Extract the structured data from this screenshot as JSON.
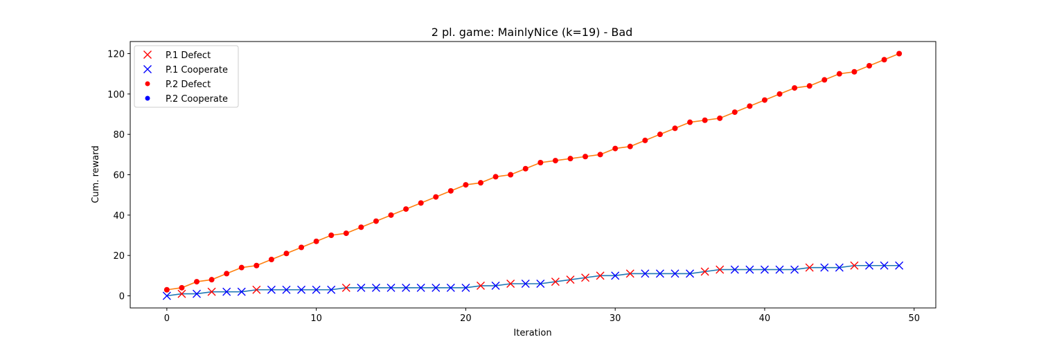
{
  "chart_data": {
    "type": "line",
    "title": "2 pl. game: MainlyNice (k=19) - Bad",
    "xlabel": "Iteration",
    "ylabel": "Cum. reward",
    "xlim": [
      -2.45,
      51.45
    ],
    "ylim": [
      -6,
      126
    ],
    "xticks": [
      0,
      10,
      20,
      30,
      40,
      50
    ],
    "yticks": [
      0,
      20,
      40,
      60,
      80,
      100,
      120
    ],
    "grid": false,
    "legend_position": "top-left",
    "legend": [
      {
        "label": "P.1 Defect",
        "marker": "x",
        "color": "#ff0000"
      },
      {
        "label": "P.1 Cooperate",
        "marker": "x",
        "color": "#0000ff"
      },
      {
        "label": "P.2 Defect",
        "marker": "dot",
        "color": "#ff0000"
      },
      {
        "label": "P.2 Cooperate",
        "marker": "dot",
        "color": "#0000ff"
      }
    ],
    "colors": {
      "p1_line": "#1f77b4",
      "p2_line": "#ff7f0e",
      "defect": "#ff0000",
      "cooperate": "#0000ff"
    },
    "series": [
      {
        "player": "P.1",
        "line_color": "#1f77b4",
        "marker": "x",
        "x": [
          0,
          1,
          2,
          3,
          4,
          5,
          6,
          7,
          8,
          9,
          10,
          11,
          12,
          13,
          14,
          15,
          16,
          17,
          18,
          19,
          20,
          21,
          22,
          23,
          24,
          25,
          26,
          27,
          28,
          29,
          30,
          31,
          32,
          33,
          34,
          35,
          36,
          37,
          38,
          39,
          40,
          41,
          42,
          43,
          44,
          45,
          46,
          47,
          48,
          49
        ],
        "y": [
          0,
          1,
          1,
          2,
          2,
          2,
          3,
          3,
          3,
          3,
          3,
          3,
          4,
          4,
          4,
          4,
          4,
          4,
          4,
          4,
          4,
          5,
          5,
          6,
          6,
          6,
          7,
          8,
          9,
          10,
          10,
          11,
          11,
          11,
          11,
          11,
          12,
          13,
          13,
          13,
          13,
          13,
          13,
          14,
          14,
          14,
          15,
          15,
          15,
          15
        ],
        "actions": [
          "C",
          "D",
          "C",
          "D",
          "C",
          "C",
          "D",
          "C",
          "C",
          "C",
          "C",
          "C",
          "D",
          "C",
          "C",
          "C",
          "C",
          "C",
          "C",
          "C",
          "C",
          "D",
          "C",
          "D",
          "C",
          "C",
          "D",
          "D",
          "D",
          "D",
          "C",
          "D",
          "C",
          "C",
          "C",
          "C",
          "D",
          "D",
          "C",
          "C",
          "C",
          "C",
          "C",
          "D",
          "C",
          "C",
          "D",
          "C",
          "C",
          "C"
        ]
      },
      {
        "player": "P.2",
        "line_color": "#ff7f0e",
        "marker": "dot",
        "x": [
          0,
          1,
          2,
          3,
          4,
          5,
          6,
          7,
          8,
          9,
          10,
          11,
          12,
          13,
          14,
          15,
          16,
          17,
          18,
          19,
          20,
          21,
          22,
          23,
          24,
          25,
          26,
          27,
          28,
          29,
          30,
          31,
          32,
          33,
          34,
          35,
          36,
          37,
          38,
          39,
          40,
          41,
          42,
          43,
          44,
          45,
          46,
          47,
          48,
          49
        ],
        "y": [
          3,
          4,
          7,
          8,
          11,
          14,
          15,
          18,
          21,
          24,
          27,
          30,
          31,
          34,
          37,
          40,
          43,
          46,
          49,
          52,
          55,
          56,
          59,
          60,
          63,
          66,
          67,
          68,
          69,
          70,
          73,
          74,
          77,
          80,
          83,
          86,
          87,
          88,
          91,
          94,
          97,
          100,
          103,
          104,
          107,
          110,
          111,
          114,
          117,
          120
        ],
        "actions": [
          "D",
          "D",
          "D",
          "D",
          "D",
          "D",
          "D",
          "D",
          "D",
          "D",
          "D",
          "D",
          "D",
          "D",
          "D",
          "D",
          "D",
          "D",
          "D",
          "D",
          "D",
          "D",
          "D",
          "D",
          "D",
          "D",
          "D",
          "D",
          "D",
          "D",
          "D",
          "D",
          "D",
          "D",
          "D",
          "D",
          "D",
          "D",
          "D",
          "D",
          "D",
          "D",
          "D",
          "D",
          "D",
          "D",
          "D",
          "D",
          "D",
          "D"
        ]
      }
    ]
  }
}
